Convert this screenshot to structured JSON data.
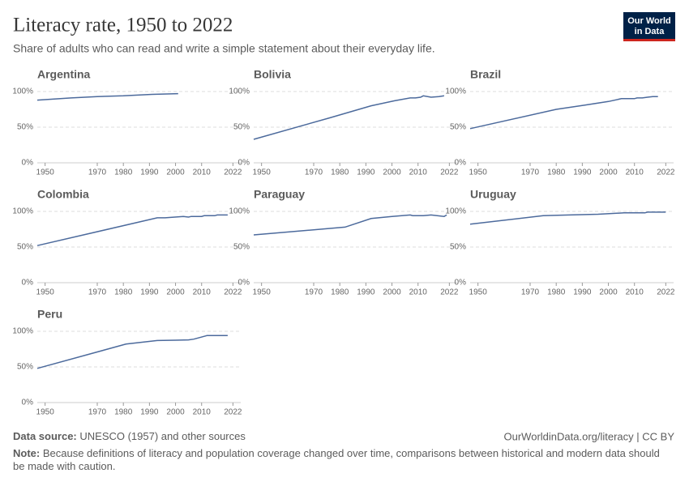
{
  "title": "Literacy rate, 1950 to 2022",
  "subtitle": "Share of adults who can read and write a simple statement about their everyday life.",
  "logo": [
    "Our World",
    "in Data"
  ],
  "source_label": "Data source:",
  "source": "UNESCO (1957) and other sources",
  "url": "OurWorldinData.org/literacy | CC BY",
  "note_label": "Note:",
  "note": "Because definitions of literacy and population coverage changed over time, comparisons between historical and modern data should be made with caution.",
  "chart_data": [
    {
      "type": "line",
      "title": "Argentina",
      "color": "#4c6a9c",
      "x": [
        1947,
        1960,
        1970,
        1980,
        1991,
        2001
      ],
      "values": [
        88,
        91,
        93,
        94,
        96,
        97
      ],
      "xlim": [
        1947,
        2025
      ],
      "ylim": [
        0,
        100
      ],
      "xticks": [
        1950,
        1970,
        1980,
        1990,
        2000,
        2010,
        2022
      ],
      "yticks": [
        {
          "value": 0,
          "label": "0%"
        },
        {
          "value": 50,
          "label": "50%"
        },
        {
          "value": 100,
          "label": "100%"
        }
      ],
      "grid": true
    },
    {
      "type": "line",
      "title": "Bolivia",
      "color": "#4c6a9c",
      "x": [
        1947,
        1976,
        1992,
        2001,
        2007,
        2009,
        2011,
        2012,
        2015,
        2018,
        2020
      ],
      "values": [
        33,
        63,
        80,
        87,
        91,
        91,
        92,
        94,
        92,
        93,
        94
      ],
      "xlim": [
        1947,
        2025
      ],
      "ylim": [
        0,
        100
      ],
      "xticks": [
        1950,
        1970,
        1980,
        1990,
        2000,
        2010,
        2022
      ],
      "yticks": [
        {
          "value": 0,
          "label": "0%"
        },
        {
          "value": 50,
          "label": "50%"
        },
        {
          "value": 100,
          "label": "100%"
        }
      ],
      "grid": true
    },
    {
      "type": "line",
      "title": "Brazil",
      "color": "#4c6a9c",
      "x": [
        1947,
        1980,
        1991,
        2000,
        2005,
        2010,
        2011,
        2013,
        2015,
        2017,
        2019
      ],
      "values": [
        48,
        75,
        81,
        86,
        90,
        90,
        91,
        91,
        92,
        93,
        93
      ],
      "xlim": [
        1947,
        2025
      ],
      "ylim": [
        0,
        100
      ],
      "xticks": [
        1950,
        1970,
        1980,
        1990,
        2000,
        2010,
        2022
      ],
      "yticks": [
        {
          "value": 0,
          "label": "0%"
        },
        {
          "value": 50,
          "label": "50%"
        },
        {
          "value": 100,
          "label": "100%"
        }
      ],
      "grid": true
    },
    {
      "type": "line",
      "title": "Colombia",
      "color": "#4c6a9c",
      "x": [
        1947,
        1993,
        1996,
        2003,
        2005,
        2006,
        2010,
        2011,
        2015,
        2016,
        2020
      ],
      "values": [
        52,
        91,
        91,
        93,
        92,
        93,
        93,
        94,
        94,
        95,
        95
      ],
      "xlim": [
        1947,
        2025
      ],
      "ylim": [
        0,
        100
      ],
      "xticks": [
        1950,
        1970,
        1980,
        1990,
        2000,
        2010,
        2022
      ],
      "yticks": [
        {
          "value": 0,
          "label": "0%"
        },
        {
          "value": 50,
          "label": "50%"
        },
        {
          "value": 100,
          "label": "100%"
        }
      ],
      "grid": true
    },
    {
      "type": "line",
      "title": "Paraguay",
      "color": "#4c6a9c",
      "x": [
        1947,
        1982,
        1992,
        2000,
        2007,
        2008,
        2009,
        2012,
        2015,
        2020,
        2021
      ],
      "values": [
        67,
        78,
        90,
        93,
        95,
        94,
        94,
        94,
        95,
        93,
        95
      ],
      "xlim": [
        1947,
        2025
      ],
      "ylim": [
        0,
        100
      ],
      "xticks": [
        1950,
        1970,
        1980,
        1990,
        2000,
        2010,
        2022
      ],
      "yticks": [
        {
          "value": 0,
          "label": "0%"
        },
        {
          "value": 50,
          "label": "50%"
        },
        {
          "value": 100,
          "label": "100%"
        }
      ],
      "grid": true
    },
    {
      "type": "line",
      "title": "Uruguay",
      "color": "#4c6a9c",
      "x": [
        1947,
        1975,
        1985,
        1996,
        2006,
        2014,
        2015,
        2020,
        2022
      ],
      "values": [
        82,
        94,
        95,
        96,
        98,
        98,
        99,
        99,
        99
      ],
      "xlim": [
        1947,
        2025
      ],
      "ylim": [
        0,
        100
      ],
      "xticks": [
        1950,
        1970,
        1980,
        1990,
        2000,
        2010,
        2022
      ],
      "yticks": [
        {
          "value": 0,
          "label": "0%"
        },
        {
          "value": 50,
          "label": "50%"
        },
        {
          "value": 100,
          "label": "100%"
        }
      ],
      "grid": true
    },
    {
      "type": "line",
      "title": "Peru",
      "color": "#4c6a9c",
      "x": [
        1947,
        1981,
        1993,
        2000,
        2005,
        2007,
        2012,
        2020
      ],
      "values": [
        48,
        82,
        87,
        87.5,
        88,
        89,
        94,
        94
      ],
      "xlim": [
        1947,
        2025
      ],
      "ylim": [
        0,
        100
      ],
      "xticks": [
        1950,
        1970,
        1980,
        1990,
        2000,
        2010,
        2022
      ],
      "yticks": [
        {
          "value": 0,
          "label": "0%"
        },
        {
          "value": 50,
          "label": "50%"
        },
        {
          "value": 100,
          "label": "100%"
        }
      ],
      "grid": true
    }
  ]
}
